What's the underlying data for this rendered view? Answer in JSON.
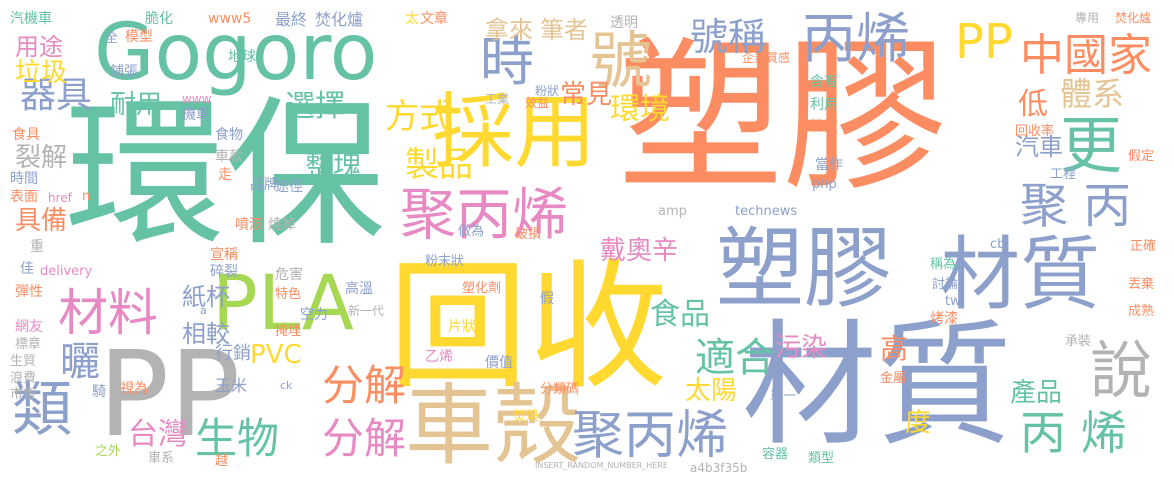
{
  "colors": {
    "background": "#ffffff",
    "teal": "#66c2a5",
    "orange": "#fc8d62",
    "blue": "#8da0cb",
    "pink": "#e78ac3",
    "lime": "#a6d854",
    "yellow": "#ffd92f",
    "tan": "#e5c494",
    "gray": "#b3b3b3"
  },
  "words": {
    "suliao_main": "塑膠",
    "huanbao": "環保",
    "huishou": "回收",
    "caizhi_big": "材質",
    "gogoro": "Gogoro",
    "pp_big": "PP",
    "suliao_2": "塑膠",
    "caizhi_2": "材質",
    "caiyong": "採用",
    "cheke": "車殼",
    "pla": "PLA",
    "bingxi_top": "丙烯",
    "ju_bingxi": "聚丙烯",
    "ju_bingxi_2": "聚丙烯",
    "geng": "更",
    "shuo": "說",
    "lei": "類",
    "cailiao": "材料",
    "pp_top": "PP",
    "shi": "時",
    "hao": "號",
    "haocheng": "號稱",
    "zhongguo": "中國家",
    "tixi": "體系",
    "ju_bing": "聚 丙",
    "fenjie_1": "分解",
    "fenjie_2": "分解",
    "shengwu": "生物",
    "taiwan": "台灣",
    "bingxi_right": "丙 烯",
    "shiheni": "適合",
    "taiyang": "太陽",
    "zhipin": "製品",
    "shipin": "食品",
    "fangshi": "方式",
    "xuanze": "選擇",
    "zhengkuai": "整塊",
    "huanjing": "環境",
    "changjian": "常見",
    "nalai": "拿來",
    "bizhe": "筆者",
    "dixing": "低",
    "qiche": "汽車",
    "huishoulv": "回收率",
    "chanpin": "產品",
    "du": "度",
    "gao": "高",
    "wuran": "污染",
    "pvc": "PVC",
    "xiaoguo": "相較",
    "zhibei": "紙杯",
    "shai": "曬",
    "qiji": "器具",
    "laji": "垃圾",
    "yongtu": "用途",
    "naiyong": "耐用",
    "liejie": "裂解",
    "jubei": "具備",
    "shiyiji": "戴奧辛",
    "pokai": "破損",
    "zuowei": "做為",
    "qiche_mo": "汽機車",
    "moxing": "模型",
    "cuihua": "脆化",
    "www5": "www5",
    "zuizhong": "最終",
    "fenhualu": "焚化爐",
    "tai": "太",
    "wenzhang": "文章",
    "touming": "透明",
    "zhuanyong": "專用",
    "fenhualu_2": "焚化爐",
    "fenzhuang": "粉狀",
    "gongye": "工業",
    "xiaoyi": "效益",
    "qiye": "企業質感",
    "hanyou": "含有",
    "liyong": "利用",
    "xingzhi": "性質",
    "dangzuo": "當作",
    "gongcheng": "工程",
    "jiading": "假定",
    "zhengque": "正確",
    "rengzhuang": "丟棄",
    "chengshu": "成熟",
    "php": "php",
    "amp": "amp",
    "technews": "technews",
    "cb": "cb",
    "tw": "tw",
    "chenwei": "稱為",
    "taolun": "討論",
    "kaoqi": "烤漆",
    "jinshu": "金屬",
    "danyi": "單一",
    "chengzhuang": "承裝",
    "rongqi": "容器",
    "leixing": "類型",
    "fenleima": "分類碼",
    "fenshao": "焚燒",
    "yixi": "乙烯",
    "jiazhi": "價值",
    "pianzhuang": "片狀",
    "suhuaji": "塑化劑",
    "jia": "假",
    "fenmozhuang": "粉末狀",
    "gaowen": "高溫",
    "xinyidai": "新一代",
    "kongli": "空力",
    "tese": "特色",
    "yanque": "掩埋",
    "xingxiao": "行銷",
    "yumi": "玉米",
    "weihai": "危害",
    "xuancheng": "宣稱",
    "suiliao": "碎裂",
    "penqi": "噴漆",
    "shaodiao": "燒掉",
    "tujing": "途徑",
    "pinpai": "品牌",
    "shiwu": "食物",
    "chekuan": "車款",
    "zou": "走",
    "jiqi": "機車",
    "www": "www",
    "diqiu": "地球",
    "shiju": "食具",
    "puzhang": "鋪張",
    "biaomian": "表面",
    "shijian": "時間",
    "zhong": "重",
    "jia2": "佳",
    "tanxing": "彈性",
    "wangyou": "網友",
    "biaozhun": "標章",
    "shengzhi": "生質",
    "langfei": "浪費",
    "shishou": "市售",
    "qi": "騎",
    "shiwei": "視為",
    "zhiwai": "之外",
    "chexi": "車系",
    "yue": "越",
    "delivery": "delivery",
    "ck": "ck",
    "a_tag": "a",
    "insert": "INSERT_RANDOM_NUMBER_HERE",
    "hash": "a4b3f35b",
    "href": "href",
    "quan": "全",
    "n_tag": "n"
  }
}
